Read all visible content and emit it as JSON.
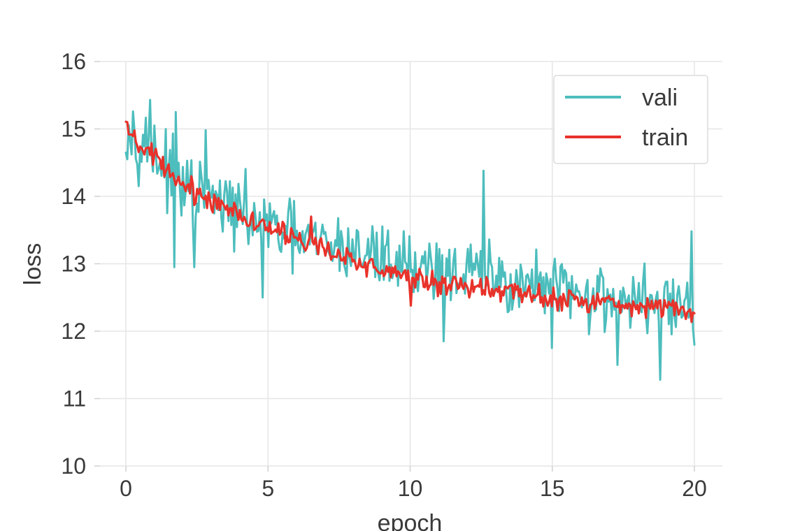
{
  "chart_data": {
    "type": "line",
    "title": "",
    "xlabel": "epoch",
    "ylabel": "loss",
    "xlim": [
      -0.9,
      21
    ],
    "ylim": [
      10,
      16
    ],
    "xticks": [
      0,
      5,
      10,
      15,
      20
    ],
    "yticks": [
      10,
      11,
      12,
      13,
      14,
      15,
      16
    ],
    "grid": true,
    "legend_position": "top-right",
    "series": [
      {
        "name": "vali",
        "color": "#4dbdbd",
        "anchors": [
          [
            0,
            15.1
          ],
          [
            2,
            14.1
          ],
          [
            4,
            13.75
          ],
          [
            6,
            13.35
          ],
          [
            8,
            13.2
          ],
          [
            10,
            13.0
          ],
          [
            12,
            12.85
          ],
          [
            14,
            12.7
          ],
          [
            16,
            12.55
          ],
          [
            18,
            12.45
          ],
          [
            20,
            12.35
          ]
        ],
        "points": 400,
        "noise": 0.55,
        "spikes": [
          [
            0.85,
            15.43
          ],
          [
            1.0,
            15.05
          ],
          [
            1.7,
            12.95
          ],
          [
            1.75,
            15.25
          ],
          [
            2.4,
            12.95
          ],
          [
            2.8,
            14.98
          ],
          [
            4.8,
            12.5
          ],
          [
            8.1,
            13.5
          ],
          [
            11.2,
            11.85
          ],
          [
            12.6,
            14.38
          ],
          [
            15.0,
            11.75
          ],
          [
            17.3,
            11.5
          ],
          [
            18.8,
            11.28
          ],
          [
            19.9,
            13.48
          ],
          [
            20.0,
            11.8
          ]
        ]
      },
      {
        "name": "train",
        "color": "#e8322a",
        "anchors": [
          [
            0,
            14.95
          ],
          [
            2,
            14.15
          ],
          [
            4,
            13.75
          ],
          [
            6,
            13.35
          ],
          [
            8,
            13.05
          ],
          [
            10,
            12.8
          ],
          [
            12,
            12.65
          ],
          [
            14,
            12.55
          ],
          [
            16,
            12.45
          ],
          [
            18,
            12.4
          ],
          [
            20,
            12.3
          ]
        ],
        "points": 400,
        "noise": 0.18,
        "spikes": [
          [
            0.05,
            15.1
          ],
          [
            6.5,
            13.7
          ],
          [
            10.0,
            12.38
          ],
          [
            19.8,
            12.3
          ]
        ]
      }
    ]
  }
}
